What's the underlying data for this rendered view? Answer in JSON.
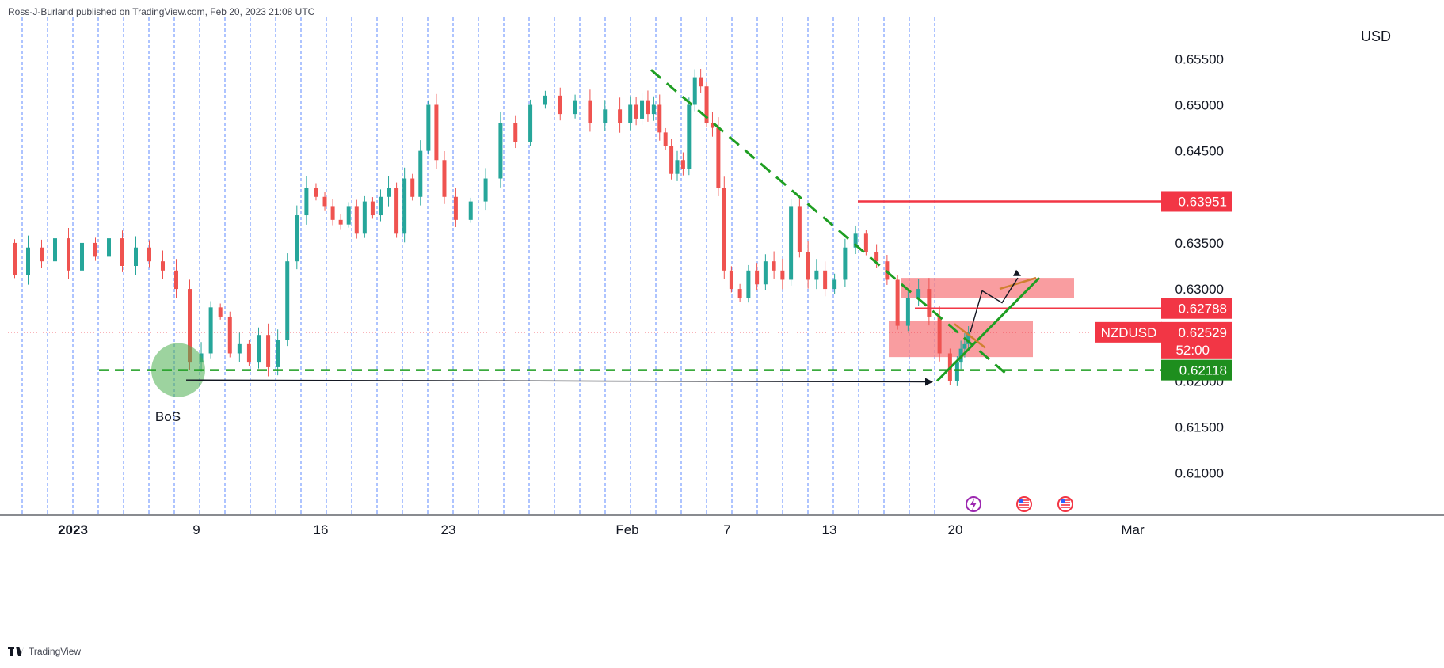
{
  "header": {
    "attribution": "Ross-J-Burland published on TradingView.com, Feb 20, 2023 21:08 UTC"
  },
  "footer": {
    "brand": "TradingView"
  },
  "colors": {
    "up": "#26a69a",
    "down": "#ef5350",
    "grid": "#2962ff",
    "trend": "#1e9e22",
    "resistance": "#f23645",
    "zone": "#f77c80",
    "support_label": "#1e8e1e",
    "price_label": "#f23645"
  },
  "chart_data": {
    "type": "candlestick",
    "symbol": "NZDUSD",
    "currency_label": "USD",
    "y_ticks": [
      "0.65500",
      "0.65000",
      "0.64500",
      "0.63500",
      "0.63000",
      "0.62000",
      "0.61500",
      "0.61000"
    ],
    "x_ticks": [
      "2023",
      "9",
      "16",
      "23",
      "Feb",
      "7",
      "13",
      "20",
      "Mar"
    ],
    "ylim": [
      0.6055,
      0.6595
    ],
    "levels": {
      "resistance": {
        "value": 0.63951,
        "label": "0.63951"
      },
      "zone_top": {
        "value": 0.62788,
        "label": "0.62788"
      },
      "current": {
        "value": 0.62529,
        "label": "0.62529",
        "countdown": "52:00"
      },
      "support": {
        "value": 0.62118,
        "label": "0.62118"
      }
    },
    "annotations": [
      {
        "text": "BoS"
      }
    ],
    "time_sections": [
      {
        "label": "2023",
        "open": 0.635,
        "points": [
          0.6315,
          0.6345,
          0.633,
          0.6355,
          0.632,
          0.635,
          0.6335,
          0.6355,
          0.6325,
          0.6345,
          0.633,
          0.632,
          0.63,
          0.622
        ]
      },
      {
        "label": "9",
        "points": [
          0.623,
          0.628,
          0.627,
          0.623,
          0.624,
          0.622,
          0.625,
          0.6215,
          0.6245,
          0.633,
          0.638,
          0.641,
          0.64
        ]
      },
      {
        "label": "16",
        "points": [
          0.639,
          0.6375,
          0.637,
          0.639,
          0.636,
          0.6395,
          0.638,
          0.64,
          0.641,
          0.636,
          0.642,
          0.64,
          0.645,
          0.65,
          0.644,
          0.64
        ]
      },
      {
        "label": "23",
        "points": [
          0.6375,
          0.6395,
          0.642,
          0.648,
          0.646,
          0.65,
          0.651,
          0.649,
          0.6505,
          0.648,
          0.6495,
          0.648
        ]
      },
      {
        "label": "Feb",
        "points": [
          0.65,
          0.6485,
          0.6505,
          0.649,
          0.65,
          0.647,
          0.6455,
          0.6425,
          0.644,
          0.643,
          0.65,
          0.653,
          0.652,
          0.648,
          0.6475,
          0.641,
          0.632
        ]
      },
      {
        "label": "7",
        "points": [
          0.63,
          0.629,
          0.632,
          0.6305,
          0.633,
          0.632,
          0.631,
          0.639,
          0.634,
          0.631,
          0.632,
          0.63
        ]
      },
      {
        "label": "13",
        "points": [
          0.631,
          0.6345,
          0.636,
          0.634,
          0.633,
          0.631,
          0.626,
          0.629,
          0.63,
          0.627,
          0.623,
          0.62
        ]
      },
      {
        "label": "20",
        "points": [
          0.622,
          0.6235,
          0.624,
          0.6253
        ]
      }
    ],
    "projection": [
      0.6253,
      0.6298,
      0.6285,
      0.6312
    ]
  }
}
